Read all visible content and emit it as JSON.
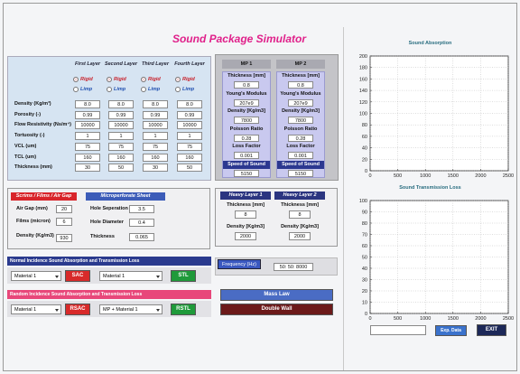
{
  "title": "Sound Package Simulator",
  "layers": {
    "headers": [
      "First Layer",
      "Second Layer",
      "Third Layer",
      "Fourth Layer"
    ],
    "options": [
      "Rigid",
      "Limp"
    ],
    "rows": [
      {
        "label": "Density (Kg/m³)",
        "values": [
          "8.0",
          "8.0",
          "8.0",
          "8.0"
        ]
      },
      {
        "label": "Porosity (-)",
        "values": [
          "0.99",
          "0.99",
          "0.99",
          "0.99"
        ]
      },
      {
        "label": "Flow Resistivity (Ns/m⁴)",
        "values": [
          "10000",
          "10000",
          "10000",
          "10000"
        ]
      },
      {
        "label": "Tortuosity (-)",
        "values": [
          "1",
          "1",
          "1",
          "1"
        ]
      },
      {
        "label": "VCL (um)",
        "values": [
          "75",
          "75",
          "75",
          "75"
        ]
      },
      {
        "label": "TCL (um)",
        "values": [
          "160",
          "160",
          "160",
          "160"
        ]
      },
      {
        "label": "Thickness (mm)",
        "values": [
          "30",
          "50",
          "30",
          "50"
        ]
      }
    ]
  },
  "mp": {
    "headers": [
      "MP 1",
      "MP 2"
    ],
    "fields": [
      "Thickness [mm]",
      "Young's Modulus",
      "Density [Kg/m3]",
      "Poisson Ratio",
      "Loss Factor",
      "Speed of Sound"
    ],
    "values": [
      [
        "0.8",
        "207e9",
        "7800",
        "0.28",
        "0.001",
        "5150"
      ],
      [
        "0.8",
        "207e9",
        "7800",
        "0.28",
        "0.001",
        "5150"
      ]
    ]
  },
  "scrims": {
    "title": "Scrims / Films / Air Gap",
    "fields": [
      {
        "label": "Air Gap (mm)",
        "value": "20"
      },
      {
        "label": "Films (micron)",
        "value": "6"
      },
      {
        "label": "Density (Kg/m3)",
        "value": "930"
      }
    ]
  },
  "micro": {
    "title": "Microperforate Sheet",
    "fields": [
      {
        "label": "Hole Seperation",
        "value": "3.5"
      },
      {
        "label": "Hole Diameter",
        "value": "0.4"
      },
      {
        "label": "Thickness",
        "value": "0.065"
      }
    ]
  },
  "heavy": {
    "headers": [
      "Heavy Layer 1",
      "Heavy Layer 2"
    ],
    "fields": [
      "Thickness [mm]",
      "Density [Kg/m3]"
    ],
    "values": [
      [
        "8",
        "2000"
      ],
      [
        "8",
        "2000"
      ]
    ]
  },
  "normal": {
    "title": "Normal Incidence Sound Absorption and Transmission Loss",
    "controls": [
      "Material 1",
      "SAC",
      "Material 1",
      "STL"
    ]
  },
  "random": {
    "title": "Random Incidence Sound Absorption and Transmission Loss",
    "controls": [
      "Material 1",
      "RSAC",
      "MP + Material 1",
      "RSTL"
    ]
  },
  "frequency": {
    "label": "Frequency (Hz)",
    "value": "50: 50: 8000"
  },
  "buttons": [
    "Mass Law",
    "Double Wall"
  ],
  "bottom_buttons": [
    "Exp. Data",
    "EXIT"
  ],
  "plots": [
    {
      "title": "Sound Absorption",
      "xlim": [
        0,
        2500
      ],
      "ylim": [
        0,
        200
      ],
      "xticks": [
        0,
        500,
        1000,
        1500,
        2000,
        2500
      ],
      "yticks": [
        0,
        20,
        40,
        60,
        80,
        100,
        120,
        140,
        160,
        180,
        200
      ],
      "grid": true
    },
    {
      "title": "Sound Transmission Loss",
      "xlim": [
        0,
        2500
      ],
      "ylim": [
        0,
        100
      ],
      "xticks": [
        0,
        500,
        1000,
        1500,
        2000,
        2500
      ],
      "yticks": [
        0,
        10,
        20,
        30,
        40,
        50,
        60,
        70,
        80,
        90,
        100
      ],
      "grid": true
    }
  ]
}
